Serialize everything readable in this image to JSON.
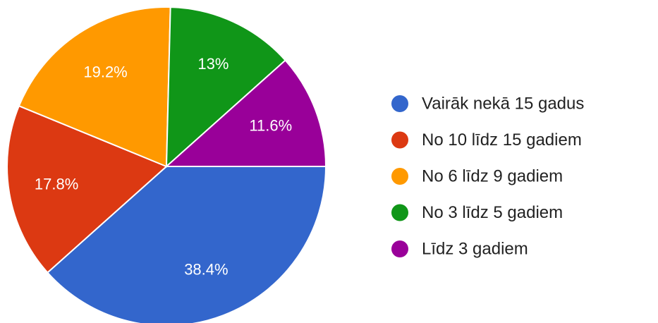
{
  "chart_data": {
    "type": "pie",
    "categories": [
      "Vairāk nekā 15 gadus",
      "No 10 līdz 15 gadiem",
      "No 6 līdz 9 gadiem",
      "No 3 līdz 5 gadiem",
      "Līdz 3 gadiem"
    ],
    "values": [
      38.4,
      17.8,
      19.2,
      13,
      11.6
    ],
    "value_labels": [
      "38.4%",
      "17.8%",
      "19.2%",
      "13%",
      "11.6%"
    ],
    "colors": [
      "#3366cc",
      "#dc3912",
      "#ff9900",
      "#109618",
      "#990099"
    ],
    "legend": "right"
  }
}
